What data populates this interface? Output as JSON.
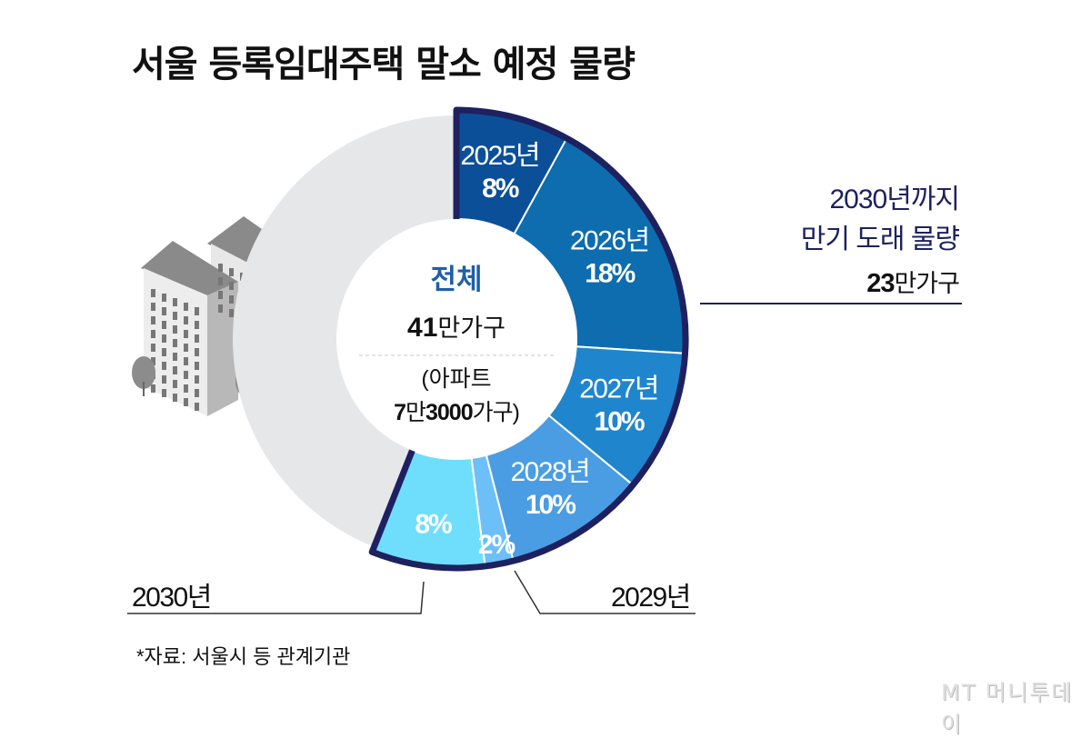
{
  "title": "서울 등록임대주택 말소 예정 물량",
  "chart_data": {
    "type": "pie",
    "variant": "donut",
    "title": "서울 등록임대주택 말소 예정 물량",
    "slices": [
      {
        "label": "2025년",
        "value": 8,
        "value_label": "8%",
        "color": "#0b4f98"
      },
      {
        "label": "2026년",
        "value": 18,
        "value_label": "18%",
        "color": "#0d6daf"
      },
      {
        "label": "2027년",
        "value": 10,
        "value_label": "10%",
        "color": "#1f86cd"
      },
      {
        "label": "2028년",
        "value": 10,
        "value_label": "10%",
        "color": "#4b9de3"
      },
      {
        "label": "2029년",
        "value": 2,
        "value_label": "2%",
        "color": "#6cbff7"
      },
      {
        "label": "2030년",
        "value": 8,
        "value_label": "8%",
        "color": "#6fdefc"
      },
      {
        "label": "",
        "value": 44,
        "value_label": "",
        "color": "#e6e7e9"
      }
    ],
    "highlight_color": "#1e2160",
    "center": {
      "heading": "전체",
      "total_number": "41",
      "total_unit": "만가구",
      "sub_open": "(아파트",
      "sub_num1": "7",
      "sub_unit1": "만",
      "sub_num2": "3000",
      "sub_unit2": "가구)"
    },
    "annotation": {
      "line1": "2030년까지",
      "line2": "만기 도래 물량",
      "number": "23",
      "unit": "만가구"
    }
  },
  "source": "*자료: 서울시 등 관계기관",
  "logo": "MT 머니투데이"
}
